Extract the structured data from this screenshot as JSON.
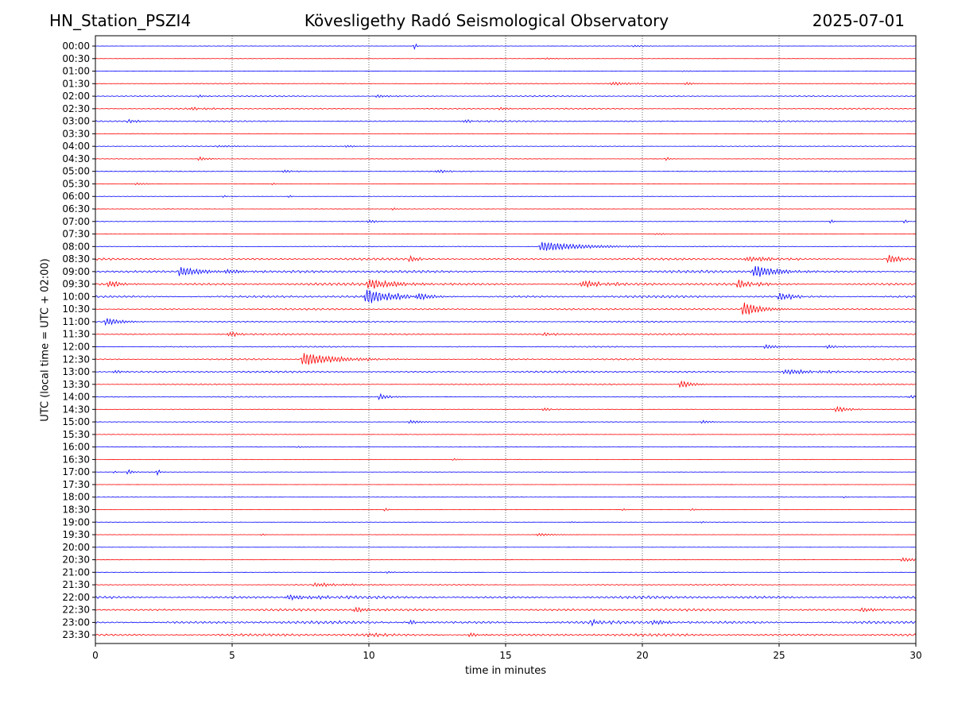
{
  "chart_data": {
    "type": "line",
    "station": "HN_Station_PSZI4",
    "title": "Kövesligethy Radó Seismological Observatory",
    "date": "2025-07-01",
    "xlabel": "time in minutes",
    "ylabel": "UTC (local time = UTC + 02:00)",
    "xlim": [
      0,
      30
    ],
    "x_ticks": [
      0,
      5,
      10,
      15,
      20,
      25,
      30
    ],
    "vertical_grid_minutes": [
      5,
      10,
      15,
      20,
      25
    ],
    "grid": "vertical dotted",
    "colors": {
      "even_rows": "#0000ff",
      "odd_rows": "#ff0000"
    },
    "rows": [
      {
        "label": "00:00",
        "noise": 0.3,
        "events": [
          {
            "t": 11.7,
            "a": 5,
            "d": 0.05
          },
          {
            "t": 19.7,
            "a": 1.3,
            "d": 0.3
          }
        ]
      },
      {
        "label": "00:30",
        "noise": 0.3,
        "events": [
          {
            "t": 16.5,
            "a": 0.8,
            "d": 0.6
          }
        ]
      },
      {
        "label": "01:00",
        "noise": 0.3,
        "events": [
          {
            "t": 21.5,
            "a": 0.8,
            "d": 0.4
          }
        ]
      },
      {
        "label": "01:30",
        "noise": 0.6,
        "events": [
          {
            "t": 18.9,
            "a": 2,
            "d": 0.8
          },
          {
            "t": 21.6,
            "a": 2,
            "d": 0.3
          }
        ]
      },
      {
        "label": "02:00",
        "noise": 0.8,
        "events": [
          {
            "t": 3.8,
            "a": 1.5,
            "d": 0.3
          },
          {
            "t": 10.3,
            "a": 1.8,
            "d": 0.4
          }
        ]
      },
      {
        "label": "02:30",
        "noise": 0.9,
        "events": [
          {
            "t": 3.5,
            "a": 2,
            "d": 0.5
          },
          {
            "t": 14.8,
            "a": 1.3,
            "d": 0.5
          }
        ]
      },
      {
        "label": "03:00",
        "noise": 1.0,
        "events": [
          {
            "t": 1.2,
            "a": 2,
            "d": 0.4
          },
          {
            "t": 13.5,
            "a": 2,
            "d": 0.4
          }
        ]
      },
      {
        "label": "03:30",
        "noise": 0.4,
        "events": []
      },
      {
        "label": "04:00",
        "noise": 0.5,
        "events": [
          {
            "t": 4.5,
            "a": 1.2,
            "d": 0.6
          },
          {
            "t": 9.2,
            "a": 1.5,
            "d": 0.3
          }
        ]
      },
      {
        "label": "04:30",
        "noise": 0.4,
        "events": [
          {
            "t": 3.8,
            "a": 2.5,
            "d": 0.3
          },
          {
            "t": 20.9,
            "a": 2.5,
            "d": 0.1
          }
        ]
      },
      {
        "label": "05:00",
        "noise": 0.6,
        "events": [
          {
            "t": 6.9,
            "a": 2,
            "d": 0.3
          },
          {
            "t": 12.5,
            "a": 1.8,
            "d": 0.5
          }
        ]
      },
      {
        "label": "05:30",
        "noise": 0.3,
        "events": [
          {
            "t": 1.5,
            "a": 1.3,
            "d": 0.4
          },
          {
            "t": 6.5,
            "a": 1.5,
            "d": 0.1
          }
        ]
      },
      {
        "label": "06:00",
        "noise": 0.3,
        "events": [
          {
            "t": 4.7,
            "a": 1.5,
            "d": 0.1
          },
          {
            "t": 7.1,
            "a": 1.5,
            "d": 0.1
          }
        ]
      },
      {
        "label": "06:30",
        "noise": 0.4,
        "events": [
          {
            "t": 10.9,
            "a": 1.8,
            "d": 0.1
          }
        ]
      },
      {
        "label": "07:00",
        "noise": 0.4,
        "events": [
          {
            "t": 10,
            "a": 2,
            "d": 0.3
          },
          {
            "t": 26.9,
            "a": 2.5,
            "d": 0.1
          },
          {
            "t": 29.6,
            "a": 2.2,
            "d": 0.1
          }
        ]
      },
      {
        "label": "07:30",
        "noise": 0.3,
        "events": [
          {
            "t": 20.5,
            "a": 1,
            "d": 0.5
          }
        ]
      },
      {
        "label": "08:00",
        "noise": 0.5,
        "events": [
          {
            "t": 16.3,
            "a": 6,
            "d": 1.5
          }
        ]
      },
      {
        "label": "08:30",
        "noise": 1.5,
        "events": [
          {
            "t": 11.5,
            "a": 3,
            "d": 0.4
          },
          {
            "t": 23.8,
            "a": 3,
            "d": 1
          },
          {
            "t": 29,
            "a": 5,
            "d": 0.5
          }
        ]
      },
      {
        "label": "09:00",
        "noise": 1.8,
        "events": [
          {
            "t": 3.1,
            "a": 6,
            "d": 0.8
          },
          {
            "t": 24.1,
            "a": 8,
            "d": 0.8
          },
          {
            "t": 4.8,
            "a": 2,
            "d": 0.8
          }
        ]
      },
      {
        "label": "09:30",
        "noise": 1.9,
        "events": [
          {
            "t": 10,
            "a": 6,
            "d": 1
          },
          {
            "t": 23.5,
            "a": 5,
            "d": 0.6
          },
          {
            "t": 17.8,
            "a": 4,
            "d": 0.8
          },
          {
            "t": 0.5,
            "a": 4,
            "d": 0.5
          }
        ]
      },
      {
        "label": "10:00",
        "noise": 1.6,
        "events": [
          {
            "t": 9.9,
            "a": 9,
            "d": 1
          },
          {
            "t": 11.8,
            "a": 6,
            "d": 0.5
          },
          {
            "t": 25,
            "a": 5,
            "d": 0.5
          }
        ]
      },
      {
        "label": "10:30",
        "noise": 1.2,
        "events": [
          {
            "t": 23.7,
            "a": 9,
            "d": 0.6
          }
        ]
      },
      {
        "label": "11:00",
        "noise": 1.0,
        "events": [
          {
            "t": 0.4,
            "a": 5,
            "d": 0.5
          }
        ]
      },
      {
        "label": "11:30",
        "noise": 1.1,
        "events": [
          {
            "t": 4.9,
            "a": 3,
            "d": 0.4
          },
          {
            "t": 16.4,
            "a": 2.5,
            "d": 0.3
          }
        ]
      },
      {
        "label": "12:00",
        "noise": 0.8,
        "events": [
          {
            "t": 24.5,
            "a": 2.5,
            "d": 0.5
          },
          {
            "t": 26.8,
            "a": 2.5,
            "d": 0.3
          }
        ]
      },
      {
        "label": "12:30",
        "noise": 1.0,
        "events": [
          {
            "t": 7.6,
            "a": 8,
            "d": 1.2
          }
        ]
      },
      {
        "label": "13:00",
        "noise": 1.3,
        "events": [
          {
            "t": 25.2,
            "a": 3,
            "d": 1.2
          },
          {
            "t": 0.7,
            "a": 2.5,
            "d": 0.2
          }
        ]
      },
      {
        "label": "13:30",
        "noise": 0.8,
        "events": [
          {
            "t": 21.4,
            "a": 5,
            "d": 0.4
          }
        ]
      },
      {
        "label": "14:00",
        "noise": 0.7,
        "events": [
          {
            "t": 10.4,
            "a": 4,
            "d": 0.3
          },
          {
            "t": 29.8,
            "a": 1.5,
            "d": 0.5
          }
        ]
      },
      {
        "label": "14:30",
        "noise": 0.5,
        "events": [
          {
            "t": 27.1,
            "a": 4,
            "d": 0.4
          },
          {
            "t": 16.4,
            "a": 2.5,
            "d": 0.2
          }
        ]
      },
      {
        "label": "15:00",
        "noise": 0.5,
        "events": [
          {
            "t": 11.5,
            "a": 2,
            "d": 0.5
          },
          {
            "t": 22.2,
            "a": 2,
            "d": 0.3
          }
        ]
      },
      {
        "label": "15:30",
        "noise": 0.4,
        "events": []
      },
      {
        "label": "16:00",
        "noise": 0.3,
        "events": [
          {
            "t": 7.4,
            "a": 1,
            "d": 0.3
          }
        ]
      },
      {
        "label": "16:30",
        "noise": 0.3,
        "events": [
          {
            "t": 13.1,
            "a": 1.3,
            "d": 0.2
          }
        ]
      },
      {
        "label": "17:00",
        "noise": 0.3,
        "events": [
          {
            "t": 1.2,
            "a": 3,
            "d": 0.2
          },
          {
            "t": 2.3,
            "a": 5,
            "d": 0.05
          },
          {
            "t": 0.7,
            "a": 1.5,
            "d": 0.1
          }
        ]
      },
      {
        "label": "17:30",
        "noise": 0.2,
        "events": []
      },
      {
        "label": "18:00",
        "noise": 0.3,
        "events": [
          {
            "t": 27.4,
            "a": 1.2,
            "d": 0.1
          }
        ]
      },
      {
        "label": "18:30",
        "noise": 0.3,
        "events": [
          {
            "t": 10.6,
            "a": 2,
            "d": 0.1
          },
          {
            "t": 19.3,
            "a": 1.5,
            "d": 0.1
          },
          {
            "t": 21.8,
            "a": 1.3,
            "d": 0.2
          }
        ]
      },
      {
        "label": "19:00",
        "noise": 0.3,
        "events": [
          {
            "t": 22.2,
            "a": 1.5,
            "d": 0.1
          },
          {
            "t": 17.4,
            "a": 1,
            "d": 0.1
          }
        ]
      },
      {
        "label": "19:30",
        "noise": 0.2,
        "events": [
          {
            "t": 16.2,
            "a": 1.8,
            "d": 0.5
          },
          {
            "t": 6.1,
            "a": 1.2,
            "d": 0.1
          }
        ]
      },
      {
        "label": "20:00",
        "noise": 0.2,
        "events": []
      },
      {
        "label": "20:30",
        "noise": 0.3,
        "events": [
          {
            "t": 29.5,
            "a": 2.5,
            "d": 0.6
          }
        ]
      },
      {
        "label": "21:00",
        "noise": 0.4,
        "events": [
          {
            "t": 10.7,
            "a": 1.3,
            "d": 0.2
          }
        ]
      },
      {
        "label": "21:30",
        "noise": 0.8,
        "events": [
          {
            "t": 8,
            "a": 2,
            "d": 1.2
          }
        ]
      },
      {
        "label": "22:00",
        "noise": 1.9,
        "events": [
          {
            "t": 7,
            "a": 2.5,
            "d": 1.5
          }
        ]
      },
      {
        "label": "22:30",
        "noise": 1.6,
        "events": [
          {
            "t": 9.5,
            "a": 3,
            "d": 0.5
          },
          {
            "t": 28,
            "a": 2.5,
            "d": 0.6
          }
        ]
      },
      {
        "label": "23:00",
        "noise": 2.0,
        "events": [
          {
            "t": 11.5,
            "a": 3,
            "d": 0.3
          },
          {
            "t": 18.2,
            "a": 4,
            "d": 0.3
          },
          {
            "t": 20.4,
            "a": 3,
            "d": 0.5
          }
        ]
      },
      {
        "label": "23:30",
        "noise": 1.8,
        "events": [
          {
            "t": 10,
            "a": 3,
            "d": 0.4
          },
          {
            "t": 13.7,
            "a": 3,
            "d": 0.3
          }
        ]
      }
    ]
  }
}
